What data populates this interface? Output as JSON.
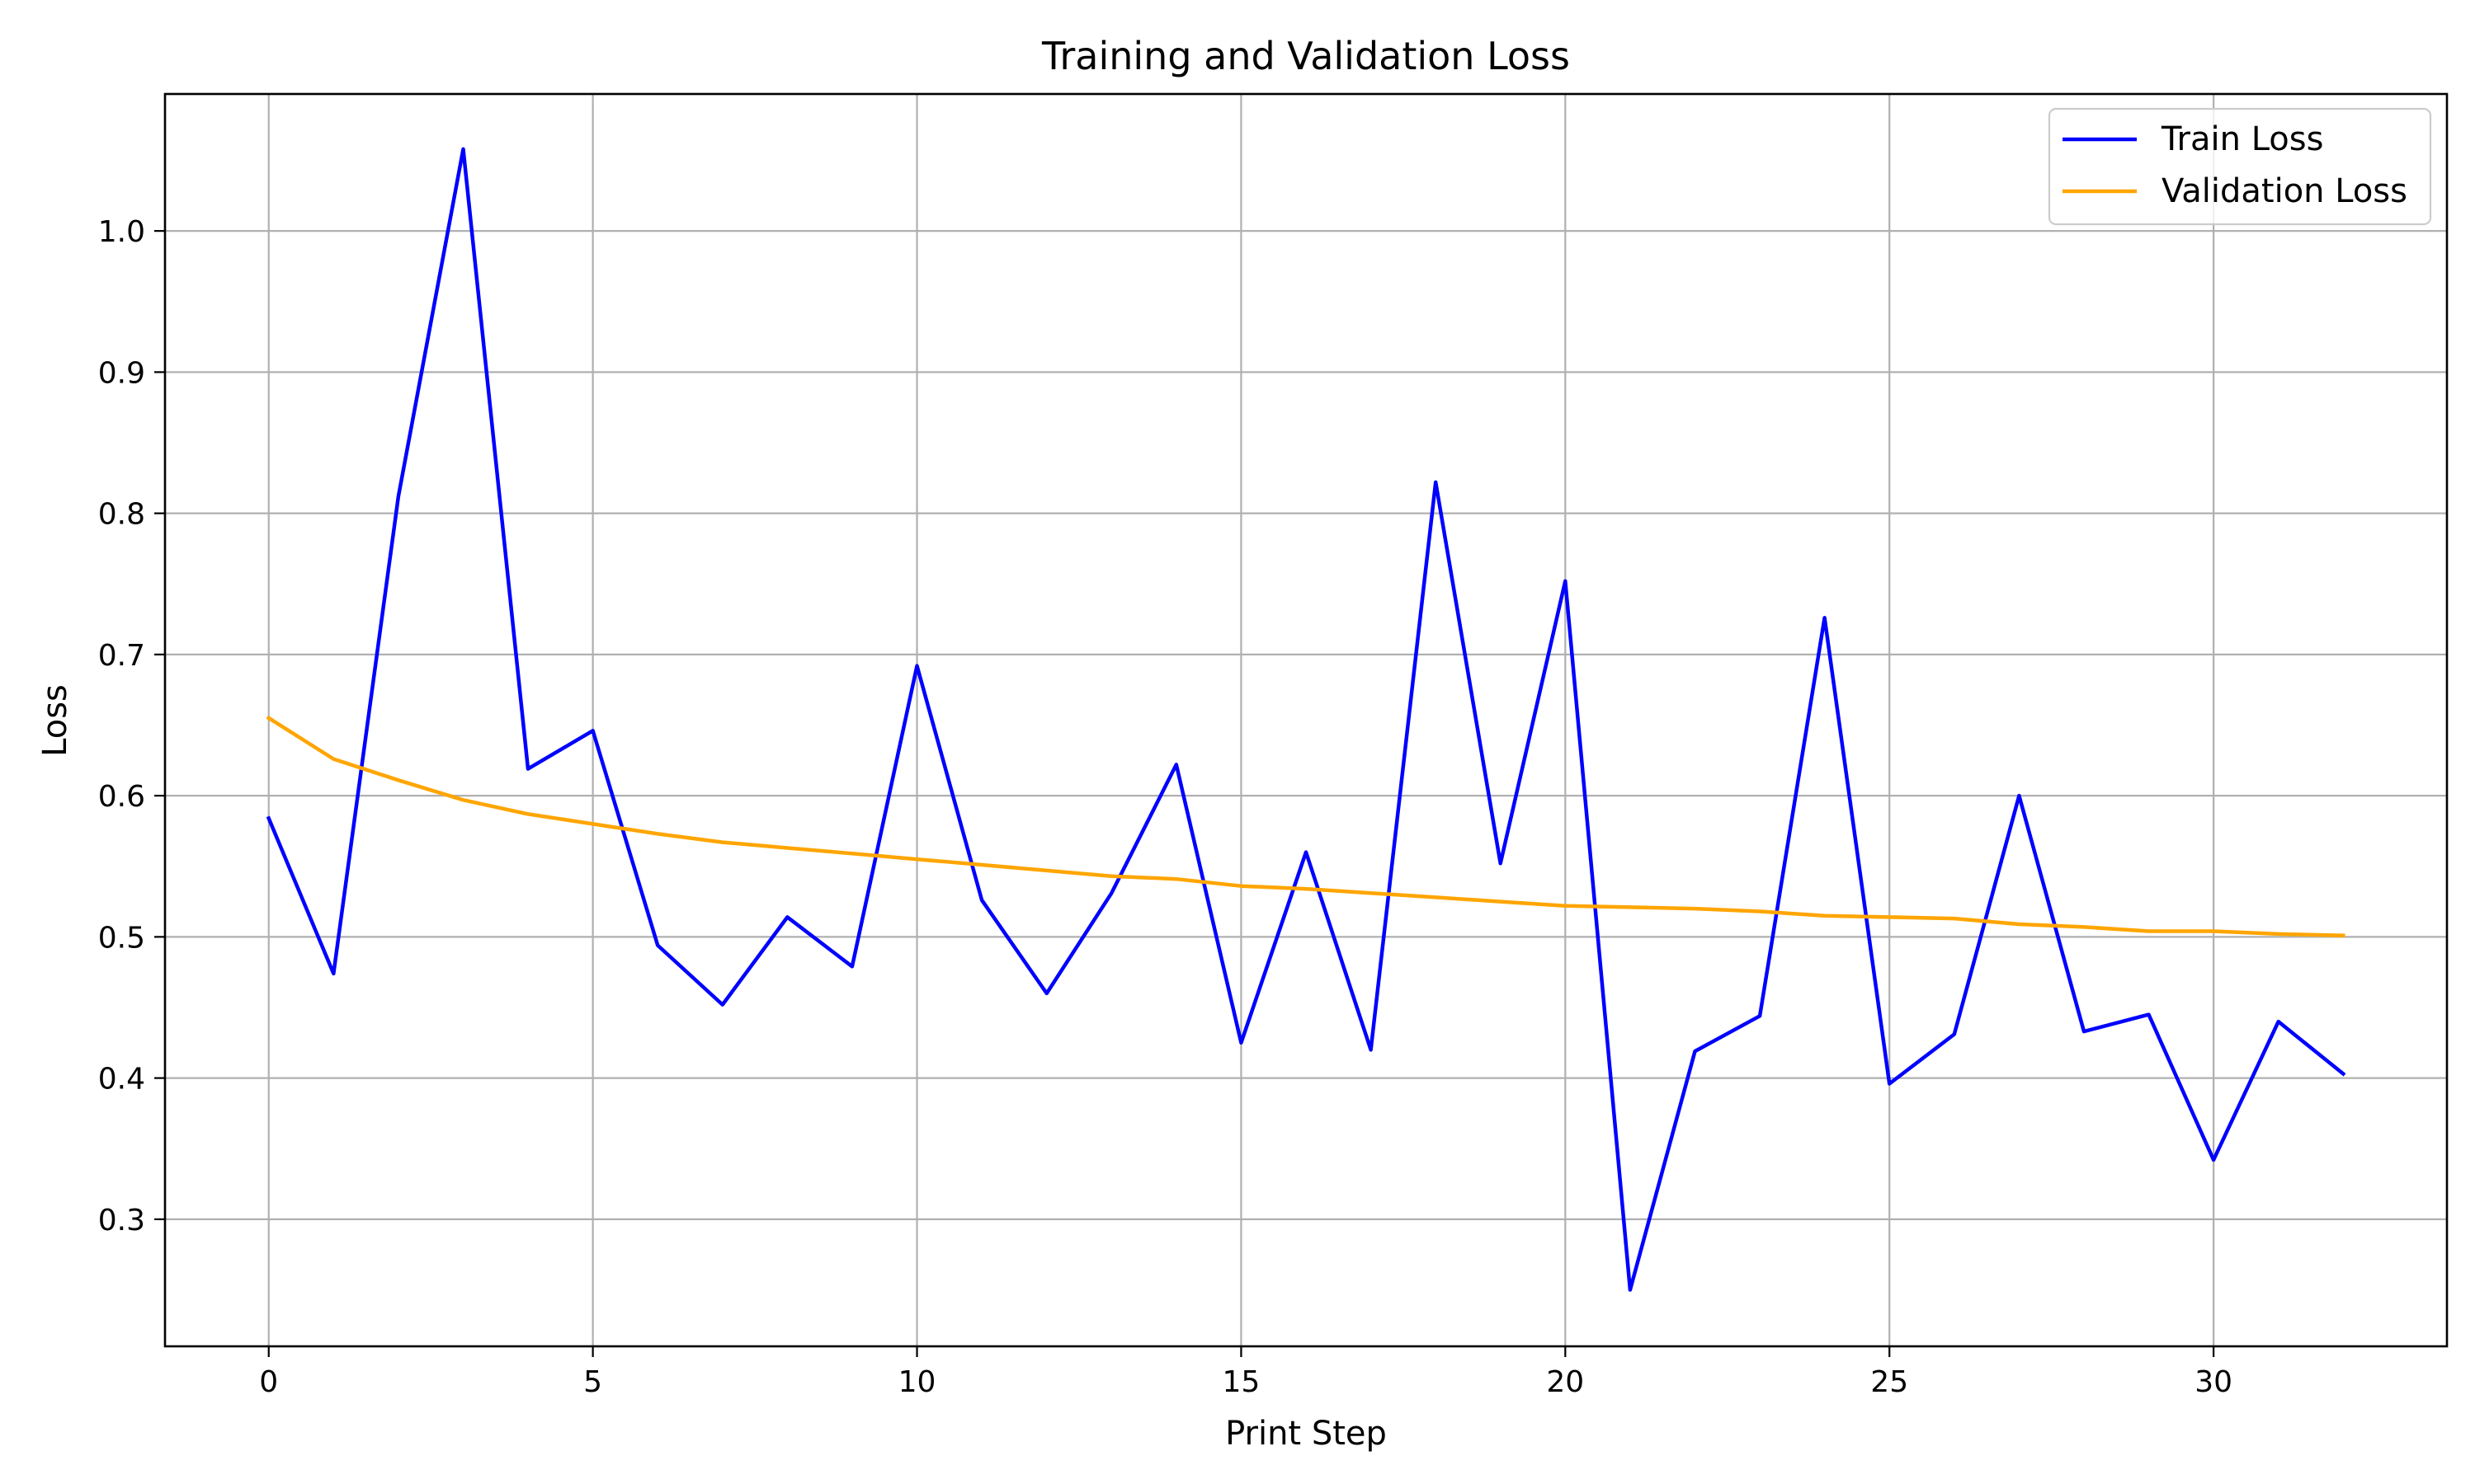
{
  "chart_data": {
    "type": "line",
    "title": "Training and Validation Loss",
    "xlabel": "Print Step",
    "ylabel": "Loss",
    "xlim": [
      -1.6,
      33.6
    ],
    "ylim": [
      0.21,
      1.097
    ],
    "xticks": [
      0,
      5,
      10,
      15,
      20,
      25,
      30
    ],
    "yticks": [
      0.3,
      0.4,
      0.5,
      0.6,
      0.7,
      0.8,
      0.9,
      1.0
    ],
    "ytick_labels": [
      "0.3",
      "0.4",
      "0.5",
      "0.6",
      "0.7",
      "0.8",
      "0.9",
      "1.0"
    ],
    "grid": true,
    "legend_position": "top-right",
    "x": [
      0,
      1,
      2,
      3,
      4,
      5,
      6,
      7,
      8,
      9,
      10,
      11,
      12,
      13,
      14,
      15,
      16,
      17,
      18,
      19,
      20,
      21,
      22,
      23,
      24,
      25,
      26,
      27,
      28,
      29,
      30,
      31,
      32
    ],
    "series": [
      {
        "name": "Train Loss",
        "color": "#0000ff",
        "values": [
          0.584,
          0.474,
          0.812,
          1.058,
          0.619,
          0.646,
          0.494,
          0.452,
          0.514,
          0.479,
          0.692,
          0.526,
          0.46,
          0.531,
          0.622,
          0.425,
          0.56,
          0.42,
          0.822,
          0.552,
          0.752,
          0.25,
          0.419,
          0.444,
          0.726,
          0.396,
          0.431,
          0.6,
          0.433,
          0.445,
          0.342,
          0.44,
          0.403
        ]
      },
      {
        "name": "Validation Loss",
        "color": "#ffa500",
        "values": [
          0.655,
          0.626,
          0.611,
          0.597,
          0.587,
          0.58,
          0.573,
          0.567,
          0.563,
          0.559,
          0.555,
          0.551,
          0.547,
          0.543,
          0.541,
          0.536,
          0.534,
          0.531,
          0.528,
          0.525,
          0.522,
          0.521,
          0.52,
          0.518,
          0.515,
          0.514,
          0.513,
          0.509,
          0.507,
          0.504,
          0.504,
          0.502,
          0.501
        ]
      }
    ]
  }
}
